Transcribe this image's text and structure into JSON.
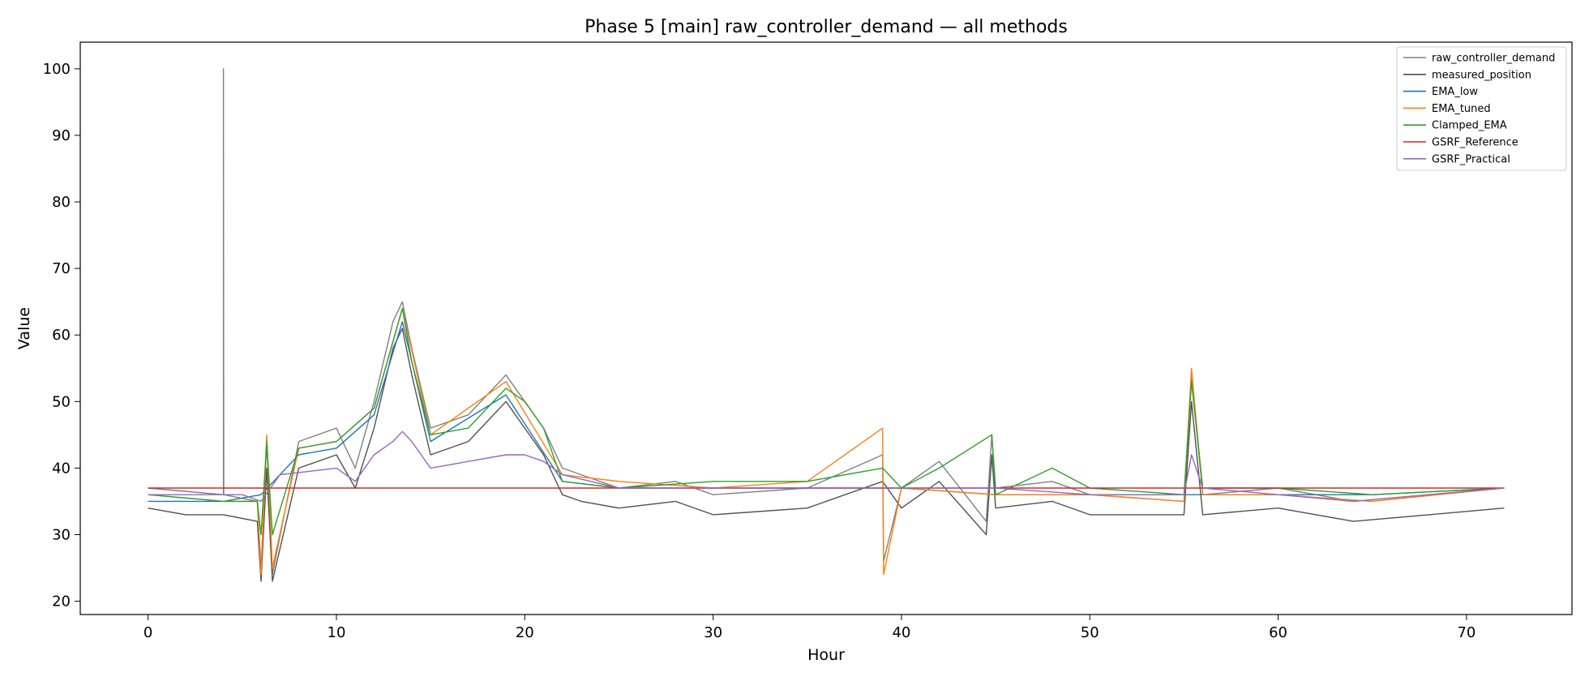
{
  "chart_data": {
    "type": "line",
    "title": "Phase 5 [main] raw_controller_demand — all methods",
    "xlabel": "Hour",
    "ylabel": "Value",
    "xlim": [
      -3.6,
      75.6
    ],
    "ylim": [
      18.0,
      104.0
    ],
    "xticks": [
      0,
      10,
      20,
      30,
      40,
      50,
      60,
      70
    ],
    "yticks": [
      20,
      30,
      40,
      50,
      60,
      70,
      80,
      90,
      100
    ],
    "grid": false,
    "legend_position": "top-right",
    "legend": [
      "raw_controller_demand",
      "measured_position",
      "EMA_low",
      "EMA_tuned",
      "Clamped_EMA",
      "GSRF_Reference",
      "GSRF_Practical"
    ],
    "series": [
      {
        "name": "raw_controller_demand",
        "color": "#808080",
        "x": [
          0,
          4,
          4,
          4.02,
          5.8,
          6,
          6.3,
          6.6,
          8,
          10,
          11,
          12,
          13,
          13.5,
          14,
          15,
          17,
          19,
          20,
          21,
          22,
          23,
          25,
          28,
          30,
          35,
          39,
          39.05,
          40,
          42,
          44.5,
          44.8,
          45,
          48,
          50,
          55,
          55.4,
          56,
          60,
          64,
          68,
          72
        ],
        "y": [
          37,
          36,
          100,
          36,
          35,
          25,
          44,
          24,
          44,
          46,
          40,
          50,
          62,
          65,
          58,
          46,
          48,
          54,
          50,
          46,
          40,
          39,
          37,
          38,
          36,
          37,
          42,
          26,
          37,
          41,
          32,
          45,
          37,
          38,
          36,
          35,
          54,
          36,
          37,
          35,
          36,
          37
        ]
      },
      {
        "name": "measured_position",
        "color": "#505050",
        "x": [
          0,
          2,
          4,
          5.8,
          6,
          6.3,
          6.6,
          8,
          10,
          11,
          12,
          13,
          13.5,
          14,
          15,
          17,
          19,
          20,
          21,
          22,
          23,
          25,
          28,
          30,
          35,
          39,
          40,
          42,
          44.5,
          44.8,
          45,
          48,
          50,
          55,
          55.4,
          56,
          60,
          64,
          68,
          72
        ],
        "y": [
          34,
          33,
          33,
          32,
          23,
          40,
          23,
          40,
          42,
          37,
          46,
          58,
          61,
          54,
          42,
          44,
          50,
          46,
          42,
          36,
          35,
          34,
          35,
          33,
          34,
          38,
          34,
          38,
          30,
          42,
          34,
          35,
          33,
          33,
          50,
          33,
          34,
          32,
          33,
          34
        ]
      },
      {
        "name": "EMA_low",
        "color": "#1f77b4",
        "x": [
          0,
          4,
          6,
          8,
          10,
          12,
          13.5,
          15,
          19,
          22,
          25,
          30,
          35,
          40,
          45,
          50,
          55,
          60,
          65,
          72
        ],
        "y": [
          35,
          35,
          36,
          42,
          43,
          48,
          62,
          44,
          51,
          38,
          37,
          37,
          37,
          37,
          36,
          36,
          36,
          36,
          36,
          37
        ]
      },
      {
        "name": "EMA_tuned",
        "color": "#ff7f0e",
        "x": [
          0,
          4,
          5.8,
          6,
          6.3,
          6.6,
          8,
          10,
          12,
          13.5,
          15,
          19,
          22,
          25,
          30,
          35,
          39,
          39.05,
          40,
          45,
          50,
          55,
          55.4,
          56,
          60,
          65,
          72
        ],
        "y": [
          36,
          35,
          35,
          24,
          45,
          25,
          43,
          44,
          49,
          64,
          45,
          53,
          39,
          38,
          37,
          38,
          46,
          24,
          37,
          36,
          36,
          35,
          55,
          36,
          36,
          35,
          37
        ]
      },
      {
        "name": "Clamped_EMA",
        "color": "#2ca02c",
        "x": [
          0,
          4,
          5.8,
          6,
          6.3,
          6.6,
          8,
          10,
          12,
          13.5,
          14,
          15,
          17,
          19,
          20,
          21,
          22,
          25,
          30,
          35,
          39,
          40,
          42,
          44.8,
          45,
          48,
          50,
          55,
          55.4,
          56,
          60,
          65,
          72
        ],
        "y": [
          36,
          35,
          35,
          30,
          44,
          30,
          43,
          44,
          49,
          64,
          56,
          45,
          46,
          52,
          50,
          46,
          38,
          37,
          38,
          38,
          40,
          37,
          40,
          45,
          36,
          40,
          37,
          36,
          53,
          37,
          37,
          36,
          37
        ]
      },
      {
        "name": "GSRF_Reference",
        "color": "#d62728",
        "x": [
          0,
          22,
          22.01,
          72
        ],
        "y": [
          37,
          37,
          37,
          37
        ]
      },
      {
        "name": "GSRF_Practical",
        "color": "#9467bd",
        "x": [
          0,
          5,
          6,
          7,
          10,
          11,
          12,
          13,
          13.5,
          14,
          15,
          17,
          19,
          20,
          21,
          22,
          25,
          30,
          35,
          40,
          45,
          50,
          55,
          55.4,
          56,
          60,
          64,
          68,
          72
        ],
        "y": [
          36,
          36,
          35,
          39,
          40,
          38,
          42,
          44,
          45.5,
          44,
          40,
          41,
          42,
          42,
          41,
          39,
          37,
          37,
          37,
          37,
          37,
          36,
          36,
          42,
          37,
          36,
          35,
          36,
          37
        ]
      }
    ]
  }
}
